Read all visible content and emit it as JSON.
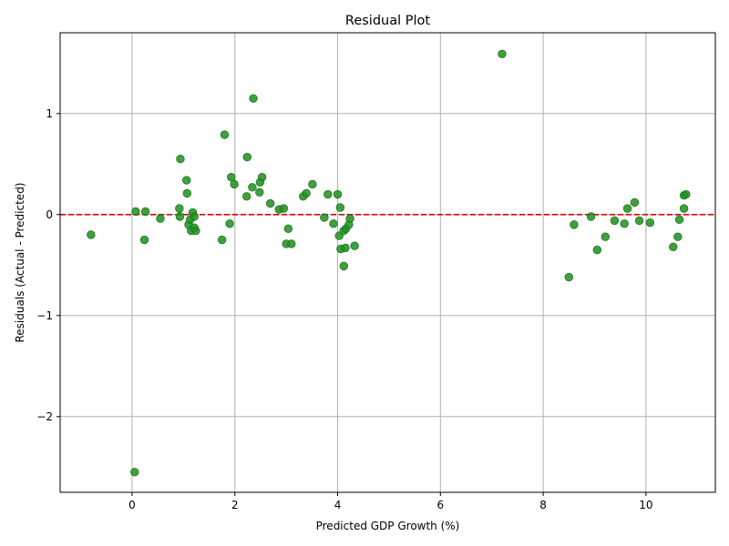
{
  "chart_data": {
    "type": "scatter",
    "title": "Residual Plot",
    "xlabel": "Predicted GDP Growth (%)",
    "ylabel": "Residuals (Actual - Predicted)",
    "xlim": [
      -1.4,
      11.35
    ],
    "ylim": [
      -2.75,
      1.8
    ],
    "xticks": [
      0,
      2,
      4,
      6,
      8,
      10
    ],
    "yticks": [
      -2,
      -1,
      0,
      1
    ],
    "ytick_labels": [
      "−2",
      "−1",
      "0",
      "1"
    ],
    "grid": true,
    "reference_line": {
      "y": 0,
      "color": "#dd0000",
      "style": "dashed"
    },
    "colors": {
      "point_fill": "#208e20",
      "point_edge": "#1a7a1a",
      "grid": "#b0b0b0"
    },
    "points": [
      [
        -0.8,
        -0.2
      ],
      [
        0.05,
        -2.55
      ],
      [
        0.07,
        0.03
      ],
      [
        0.24,
        -0.25
      ],
      [
        0.26,
        0.03
      ],
      [
        0.55,
        -0.04
      ],
      [
        0.92,
        0.06
      ],
      [
        0.93,
        -0.02
      ],
      [
        0.94,
        0.55
      ],
      [
        1.06,
        0.34
      ],
      [
        1.07,
        0.21
      ],
      [
        1.1,
        -0.1
      ],
      [
        1.13,
        -0.05
      ],
      [
        1.15,
        -0.16
      ],
      [
        1.18,
        0.02
      ],
      [
        1.21,
        -0.13
      ],
      [
        1.21,
        -0.02
      ],
      [
        1.24,
        -0.16
      ],
      [
        1.75,
        -0.25
      ],
      [
        1.8,
        0.79
      ],
      [
        1.9,
        -0.09
      ],
      [
        1.93,
        0.37
      ],
      [
        1.99,
        0.3
      ],
      [
        2.23,
        0.18
      ],
      [
        2.24,
        0.57
      ],
      [
        2.34,
        0.27
      ],
      [
        2.36,
        1.15
      ],
      [
        2.48,
        0.22
      ],
      [
        2.49,
        0.32
      ],
      [
        2.53,
        0.37
      ],
      [
        2.69,
        0.11
      ],
      [
        2.86,
        0.05
      ],
      [
        2.95,
        0.06
      ],
      [
        3.0,
        -0.29
      ],
      [
        3.04,
        -0.14
      ],
      [
        3.1,
        -0.29
      ],
      [
        3.33,
        0.18
      ],
      [
        3.39,
        0.21
      ],
      [
        3.51,
        0.3
      ],
      [
        3.74,
        -0.03
      ],
      [
        3.81,
        0.2
      ],
      [
        3.92,
        -0.09
      ],
      [
        4.0,
        0.2
      ],
      [
        4.03,
        -0.21
      ],
      [
        4.05,
        0.07
      ],
      [
        4.06,
        -0.34
      ],
      [
        4.12,
        -0.16
      ],
      [
        4.12,
        -0.51
      ],
      [
        4.15,
        -0.33
      ],
      [
        4.16,
        -0.14
      ],
      [
        4.22,
        -0.1
      ],
      [
        4.24,
        -0.04
      ],
      [
        4.33,
        -0.31
      ],
      [
        7.2,
        1.59
      ],
      [
        8.5,
        -0.62
      ],
      [
        8.6,
        -0.1
      ],
      [
        8.93,
        -0.02
      ],
      [
        9.05,
        -0.35
      ],
      [
        9.21,
        -0.22
      ],
      [
        9.39,
        -0.06
      ],
      [
        9.58,
        -0.09
      ],
      [
        9.64,
        0.06
      ],
      [
        9.78,
        0.12
      ],
      [
        9.87,
        -0.06
      ],
      [
        10.08,
        -0.08
      ],
      [
        10.53,
        -0.32
      ],
      [
        10.62,
        -0.22
      ],
      [
        10.65,
        -0.05
      ],
      [
        10.74,
        0.06
      ],
      [
        10.74,
        0.19
      ],
      [
        10.78,
        0.2
      ]
    ]
  }
}
